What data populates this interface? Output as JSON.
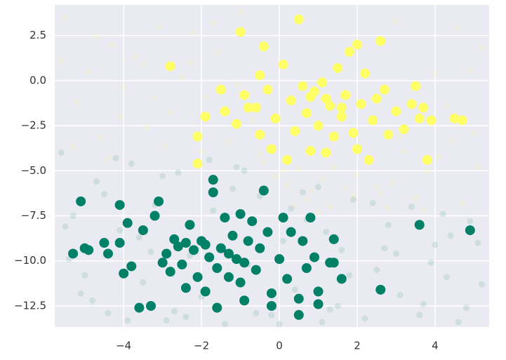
{
  "chart_data": {
    "type": "scatter",
    "xlim": [
      -5.77,
      5.39
    ],
    "ylim": [
      -13.67,
      4.2
    ],
    "xticks": [
      {
        "value": -4,
        "label": "−4"
      },
      {
        "value": -2,
        "label": "−2"
      },
      0,
      2,
      4
    ],
    "yticks": [
      {
        "value": 2.5,
        "label": "2.5"
      },
      {
        "value": 0,
        "label": "0.0"
      },
      {
        "value": -2.5,
        "label": "−2.5"
      },
      {
        "value": -5,
        "label": "−5.0"
      },
      {
        "value": -7.5,
        "label": "−7.5"
      },
      {
        "value": -10,
        "label": "−10.0"
      },
      {
        "value": -12.5,
        "label": "−12.5"
      }
    ],
    "grid": true,
    "series": [
      {
        "color": "#ffff66",
        "alpha": 0.12,
        "marker_size": 4.5,
        "x": [
          -5.5,
          -5.2,
          -4.9,
          -4.6,
          -4.3,
          -4.0,
          -3.7,
          -3.4,
          -3.1,
          -2.8,
          -2.5,
          -2.2,
          -1.9,
          -1.6,
          -1.3,
          -1.0,
          -0.7,
          -0.4,
          -0.1,
          0.2,
          0.5,
          0.8,
          1.1,
          1.4,
          1.7,
          2.0,
          2.3,
          2.6,
          2.9,
          3.2,
          3.5,
          3.8,
          4.1,
          4.4,
          4.7,
          5.0,
          5.2,
          -5.3,
          -4.7,
          -4.1,
          -3.5,
          -2.9,
          -2.3,
          -1.7,
          -1.1,
          -0.5,
          0.1,
          0.7,
          1.3,
          1.9,
          2.5,
          3.1,
          3.7,
          4.3,
          4.9,
          -5.6,
          -4.4,
          -3.2,
          -2.0,
          3.0,
          4.0,
          5.1,
          1.0,
          2.8,
          0.4,
          4.6
        ],
        "y": [
          3.5,
          -1.2,
          0.5,
          -3.1,
          2.0,
          -0.4,
          1.3,
          -2.6,
          3.0,
          -1.8,
          0.2,
          2.7,
          -0.9,
          1.6,
          -3.4,
          3.8,
          -2.2,
          -4.5,
          -5.3,
          -5.8,
          -4.9,
          -6.1,
          -5.5,
          -4.8,
          -6.0,
          -5.2,
          -4.6,
          -6.3,
          -5.7,
          -3.9,
          -6.5,
          -5.0,
          -4.2,
          -3.3,
          -6.8,
          -2.9,
          1.8,
          -3.7,
          2.4,
          -2.0,
          0.9,
          -3.6,
          1.0,
          3.2,
          -0.2,
          -4.1,
          -5.0,
          -6.6,
          -7.0,
          -6.4,
          -5.9,
          -3.1,
          -7.2,
          -1.4,
          0.6,
          1.1,
          -4.3,
          -1.0,
          -3.9,
          3.3,
          0.4,
          -4.8,
          -7.3,
          -7.1,
          -6.9,
          2.9
        ]
      },
      {
        "color": "#008066",
        "alpha": 0.12,
        "marker_size": 4.5,
        "x": [
          -5.6,
          -5.3,
          -5.0,
          -4.7,
          -4.4,
          -4.1,
          -3.8,
          -3.5,
          -3.2,
          -2.9,
          -2.6,
          -2.3,
          -2.0,
          -1.7,
          -1.4,
          -1.1,
          -0.8,
          -0.5,
          -0.2,
          0.1,
          0.4,
          0.7,
          1.0,
          1.3,
          1.6,
          1.9,
          2.2,
          2.5,
          2.8,
          3.1,
          3.4,
          3.7,
          4.0,
          4.3,
          4.6,
          4.9,
          5.2,
          -5.4,
          -4.8,
          -4.2,
          -3.6,
          -3.0,
          -2.4,
          -1.8,
          -1.2,
          -0.6,
          0.0,
          0.6,
          1.2,
          1.8,
          2.4,
          3.0,
          3.6,
          4.2,
          4.8,
          -5.5,
          -4.5,
          -3.3,
          -2.1,
          -0.9,
          0.3,
          1.5,
          2.7,
          3.9,
          5.1,
          -5.1,
          -3.9,
          -2.7,
          1.1,
          4.4
        ],
        "y": [
          -4.0,
          -7.5,
          -10.8,
          -5.6,
          -12.9,
          -8.3,
          -4.6,
          -11.2,
          -6.9,
          -13.3,
          -5.1,
          -9.7,
          -12.0,
          -7.2,
          -13.5,
          -4.8,
          -10.2,
          -6.4,
          -13.0,
          -8.9,
          -11.6,
          -7.7,
          -5.9,
          -12.7,
          -9.4,
          -6.6,
          -13.2,
          -10.5,
          -8.0,
          -11.9,
          -7.0,
          -12.4,
          -9.1,
          -10.9,
          -13.4,
          -7.8,
          -11.3,
          -9.9,
          -12.2,
          -4.3,
          -8.7,
          -5.3,
          -13.1,
          -4.4,
          -6.0,
          -12.9,
          -13.5,
          -6.2,
          -8.4,
          -10.8,
          -6.8,
          -9.6,
          -13.0,
          -7.4,
          -12.6,
          -8.1,
          -6.3,
          -9.5,
          -11.0,
          -5.0,
          -7.1,
          -12.5,
          -9.3,
          -10.1,
          -9.0,
          -11.8,
          -13.3,
          -12.8,
          -13.4,
          -8.6
        ]
      },
      {
        "color": "#008066",
        "alpha": 1,
        "marker_size": 7,
        "x": [
          -5.1,
          -5.3,
          -5.0,
          -4.9,
          -4.5,
          -4.4,
          -4.1,
          -4.1,
          -3.9,
          -4.0,
          -3.8,
          -3.6,
          -3.5,
          -3.3,
          -3.2,
          -3.1,
          -3.0,
          -2.9,
          -2.8,
          -2.6,
          -2.5,
          -2.4,
          -2.3,
          -2.2,
          -2.1,
          -2.0,
          -1.9,
          -1.8,
          -1.7,
          -1.7,
          -1.6,
          -1.6,
          -1.5,
          -1.4,
          -1.3,
          -1.2,
          -1.1,
          -1.0,
          -1.0,
          -0.9,
          -0.8,
          -0.7,
          -0.6,
          -0.5,
          -0.4,
          -0.3,
          -0.2,
          -0.2,
          0.0,
          0.1,
          0.2,
          0.3,
          0.5,
          0.5,
          0.6,
          0.7,
          0.8,
          0.9,
          1.0,
          1.0,
          1.3,
          1.4,
          1.4,
          1.6,
          2.6,
          3.6,
          4.9,
          -1.9,
          -2.7,
          -1.3,
          -0.9,
          -2.4
        ],
        "y": [
          -6.7,
          -9.6,
          -9.3,
          -9.4,
          -9.0,
          -9.6,
          -6.9,
          -9.0,
          -7.9,
          -10.7,
          -10.3,
          -12.6,
          -8.3,
          -12.5,
          -7.5,
          -6.7,
          -10.1,
          -9.6,
          -10.6,
          -9.2,
          -10.2,
          -11.5,
          -8.0,
          -9.4,
          -10.9,
          -8.9,
          -11.7,
          -9.8,
          -5.5,
          -6.2,
          -10.4,
          -12.6,
          -9.3,
          -7.6,
          -10.9,
          -8.6,
          -9.9,
          -7.4,
          -11.2,
          -12.2,
          -8.9,
          -7.8,
          -10.5,
          -9.3,
          -6.1,
          -8.4,
          -11.8,
          -12.5,
          -9.9,
          -7.6,
          -11.0,
          -8.4,
          -12.1,
          -13.0,
          -8.9,
          -10.4,
          -7.6,
          -9.8,
          -11.7,
          -12.4,
          -10.1,
          -10.1,
          -8.8,
          -11.0,
          -11.6,
          -8.0,
          -8.3,
          -9.1,
          -8.8,
          -9.6,
          -10.1,
          -9.0
        ]
      },
      {
        "color": "#ffff66",
        "alpha": 1,
        "marker_size": 7,
        "x": [
          -2.8,
          -1.0,
          -1.5,
          -2.1,
          -2.1,
          -1.9,
          -1.4,
          -1.1,
          -0.9,
          -0.6,
          -0.5,
          -0.5,
          -0.3,
          -0.2,
          -0.4,
          -0.1,
          0.1,
          0.2,
          0.3,
          0.4,
          0.5,
          0.6,
          0.7,
          0.8,
          0.9,
          1.0,
          1.1,
          1.2,
          1.3,
          1.4,
          1.5,
          1.6,
          1.7,
          1.8,
          1.9,
          2.0,
          2.0,
          2.1,
          2.2,
          2.3,
          2.4,
          2.6,
          2.7,
          2.8,
          3.0,
          3.2,
          3.4,
          3.5,
          3.6,
          3.8,
          3.9,
          3.7,
          4.5,
          4.7,
          2.5,
          1.2,
          0.8,
          -0.8,
          1.6
        ],
        "y": [
          0.8,
          2.7,
          -0.5,
          -3.1,
          -4.6,
          -2.0,
          -1.7,
          -2.4,
          -0.8,
          -1.5,
          -3.0,
          0.3,
          -0.5,
          -3.8,
          1.9,
          -2.1,
          0.9,
          -4.4,
          -1.1,
          -2.8,
          3.4,
          -0.3,
          -1.8,
          -3.9,
          -0.6,
          -2.5,
          -0.1,
          -4.0,
          -1.4,
          -3.1,
          0.7,
          -2.0,
          -0.8,
          1.6,
          -2.9,
          2.0,
          -3.8,
          -1.3,
          0.4,
          -4.4,
          -2.2,
          2.2,
          -0.5,
          -3.0,
          -1.7,
          -2.7,
          -1.3,
          -0.3,
          -2.1,
          -4.4,
          -2.2,
          -1.5,
          -2.1,
          -2.2,
          -1.0,
          -1.0,
          -0.9,
          -1.5,
          -1.5
        ]
      }
    ]
  }
}
